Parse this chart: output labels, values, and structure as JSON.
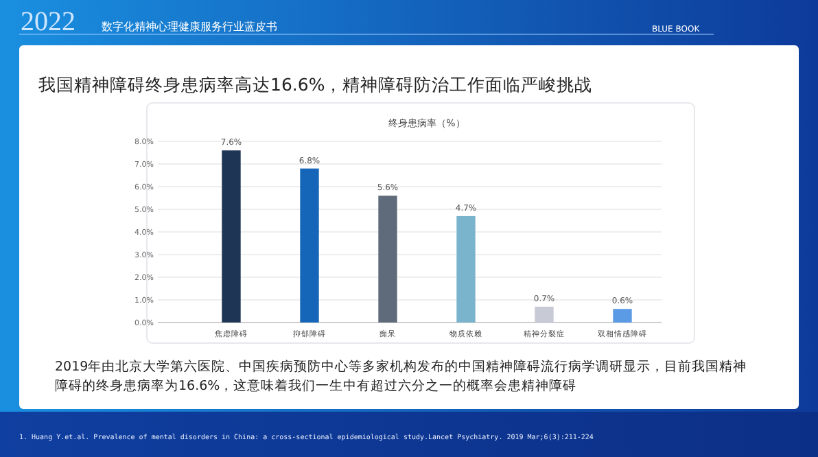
{
  "chart_data": {
    "type": "bar",
    "title": "终身患病率（%）",
    "categories": [
      "焦虑障碍",
      "抑郁障碍",
      "痴呆",
      "物质依赖",
      "精神分裂症",
      "双相情感障碍"
    ],
    "values": [
      7.6,
      6.8,
      5.6,
      4.7,
      0.7,
      0.6
    ],
    "colors": [
      "#1f3556",
      "#1565b8",
      "#5f6b7a",
      "#7ab3cc",
      "#c8cad6",
      "#5b9be6"
    ],
    "value_labels": [
      "7.6%",
      "6.8%",
      "5.6%",
      "4.7%",
      "0.7%",
      "0.6%"
    ],
    "ylim": [
      0,
      8
    ],
    "yticks": [
      {
        "value": 0,
        "label": "0.0%"
      },
      {
        "value": 1,
        "label": "1.0%"
      },
      {
        "value": 2,
        "label": "2.0%"
      },
      {
        "value": 3,
        "label": "3.0%"
      },
      {
        "value": 4,
        "label": "4.0%"
      },
      {
        "value": 5,
        "label": "5.0%"
      },
      {
        "value": 6,
        "label": "6.0%"
      },
      {
        "value": 7,
        "label": "7.0%"
      },
      {
        "value": 8,
        "label": "8.0%"
      }
    ],
    "grid": "y",
    "annotations": [
      "2022",
      "数字化精神心理健康服务行业蓝皮书",
      "BLUE BOOK",
      "我国精神障碍终身患病率高达16.6%，精神障碍防治工作面临严峻挑战",
      "2019年由北京大学第六医院、中国疾病预防中心等多家机构发布的中国精神障碍流行病学调研显示，目前我国精神障碍的终身患病率为16.6%，这意味着我们一生中有超过六分之一的概率会患精神障碍",
      "1. Huang Y.et.al. Prevalence of mental disorders in China: a cross-sectional epidemiological study.Lancet Psychiatry. 2019 Mar;6(3):211-224"
    ]
  }
}
